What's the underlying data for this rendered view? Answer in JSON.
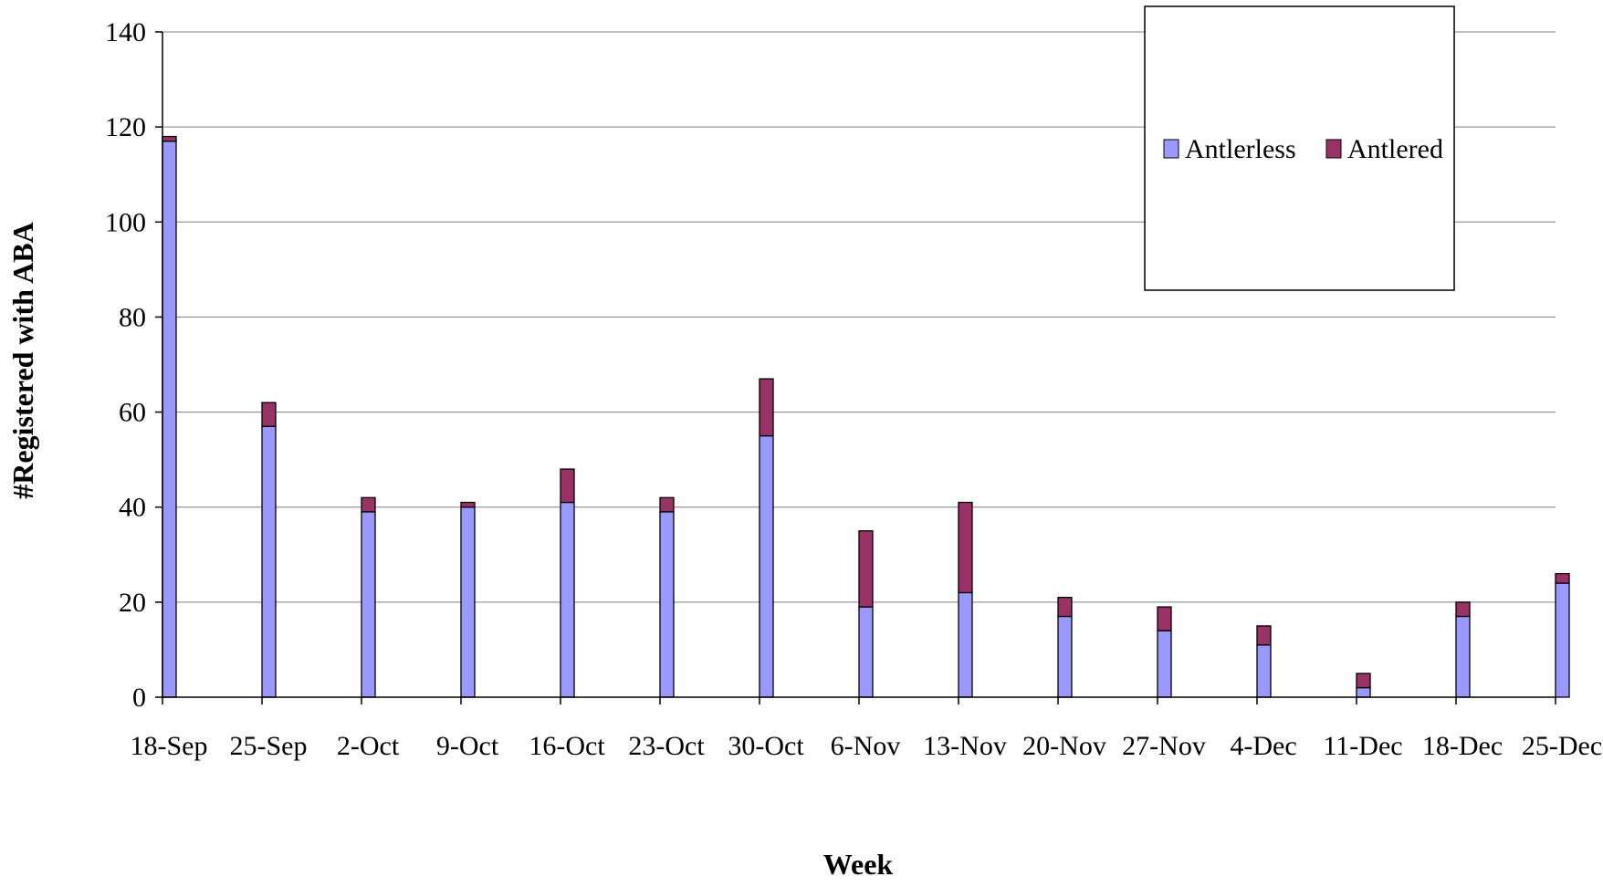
{
  "chart_data": {
    "type": "bar",
    "stacked": true,
    "title": "",
    "xlabel": "Week",
    "ylabel": "#Registered with ABA",
    "ylim": [
      0,
      140
    ],
    "yticks": [
      0,
      20,
      40,
      60,
      80,
      100,
      120,
      140
    ],
    "grid": true,
    "legend_position": "top-right",
    "categories": [
      "18-Sep",
      "25-Sep",
      "2-Oct",
      "9-Oct",
      "16-Oct",
      "23-Oct",
      "30-Oct",
      "6-Nov",
      "13-Nov",
      "20-Nov",
      "27-Nov",
      "4-Dec",
      "11-Dec",
      "18-Dec",
      "25-Dec"
    ],
    "series": [
      {
        "name": "Antlerless",
        "color": "#9999ff",
        "values": [
          117,
          57,
          39,
          40,
          41,
          39,
          55,
          19,
          22,
          17,
          14,
          11,
          2,
          17,
          24
        ]
      },
      {
        "name": "Antlered",
        "color": "#993366",
        "values": [
          1,
          5,
          3,
          1,
          7,
          3,
          12,
          16,
          19,
          4,
          5,
          4,
          3,
          3,
          2
        ]
      }
    ]
  }
}
